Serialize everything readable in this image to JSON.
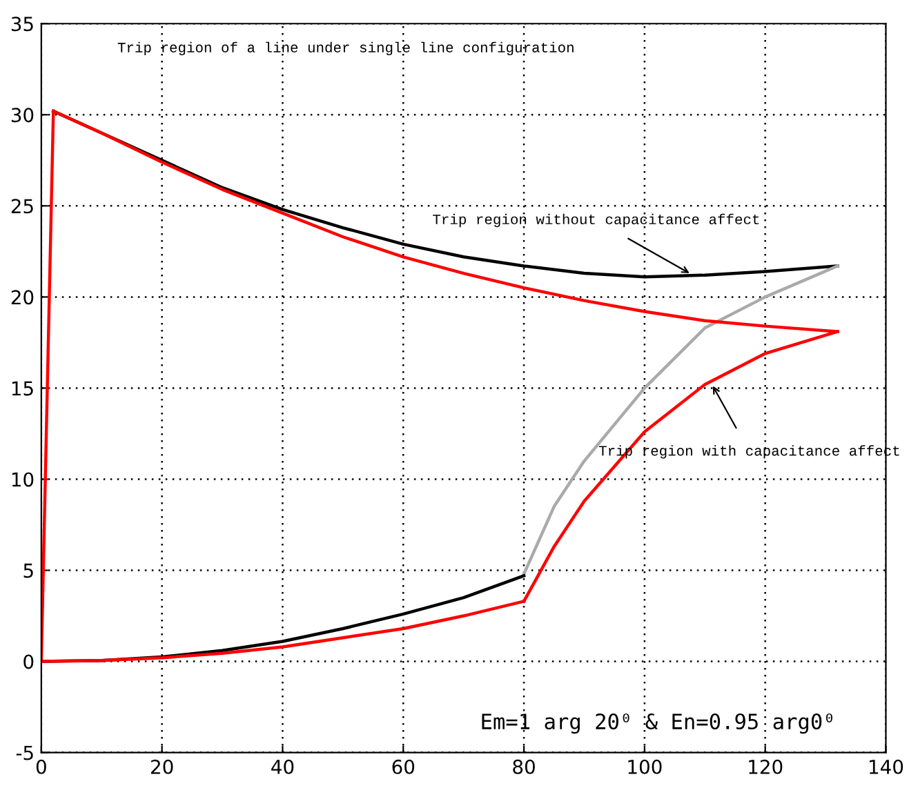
{
  "chart_data": {
    "type": "line",
    "title": "Trip region of a line under single line configuration",
    "series": [
      {
        "color": "#000000",
        "x": [
          2,
          10,
          20,
          30,
          40,
          50,
          60,
          70,
          80,
          90,
          100,
          110,
          120,
          132
        ],
        "values": [
          30.2,
          29.0,
          27.5,
          26.0,
          24.8,
          23.8,
          22.9,
          22.2,
          21.7,
          21.3,
          21.1,
          21.2,
          21.4,
          21.7
        ]
      },
      {
        "color": "#aaaaaa",
        "x": [
          132,
          120,
          110,
          100,
          90,
          85,
          80
        ],
        "values": [
          21.7,
          20.0,
          18.3,
          15.0,
          11.0,
          8.5,
          4.8
        ]
      },
      {
        "color": "#000000",
        "x": [
          80,
          70,
          60,
          50,
          40,
          30,
          20,
          10,
          0
        ],
        "values": [
          4.7,
          3.5,
          2.6,
          1.8,
          1.1,
          0.6,
          0.25,
          0.05,
          0
        ]
      },
      {
        "color": "#ff0000",
        "x": [
          0,
          2
        ],
        "values": [
          0,
          30.2
        ]
      },
      {
        "color": "#ff0000",
        "x": [
          2,
          10,
          20,
          30,
          40,
          50,
          60,
          70,
          80,
          90,
          100,
          110,
          120,
          132
        ],
        "values": [
          30.2,
          29.0,
          27.4,
          25.9,
          24.6,
          23.3,
          22.2,
          21.3,
          20.5,
          19.8,
          19.2,
          18.7,
          18.4,
          18.1
        ]
      },
      {
        "color": "#ff0000",
        "x": [
          80,
          85,
          90,
          100,
          110,
          120,
          132
        ],
        "values": [
          3.3,
          6.3,
          8.8,
          12.6,
          15.2,
          16.9,
          18.1
        ]
      },
      {
        "color": "#ff0000",
        "x": [
          0,
          10,
          20,
          30,
          40,
          50,
          60,
          70,
          80
        ],
        "values": [
          0,
          0.05,
          0.2,
          0.45,
          0.8,
          1.3,
          1.8,
          2.5,
          3.3
        ]
      }
    ],
    "annotations": [
      {
        "text": "Trip region without capacitance affect",
        "x": 108,
        "y": 21.2
      },
      {
        "text": "Trip region with capacitance affect",
        "x": 111,
        "y": 15.3
      },
      "Em=1 arg 20⁰ & En=0.95 arg0⁰"
    ],
    "xlim": [
      0,
      140
    ],
    "ylim": [
      -5,
      35
    ],
    "xticks": [
      0,
      20,
      40,
      60,
      80,
      100,
      120,
      140
    ],
    "yticks": [
      -5,
      0,
      5,
      10,
      15,
      20,
      25,
      30,
      35
    ],
    "grid": true,
    "line_style": "solid",
    "marker": "none"
  }
}
